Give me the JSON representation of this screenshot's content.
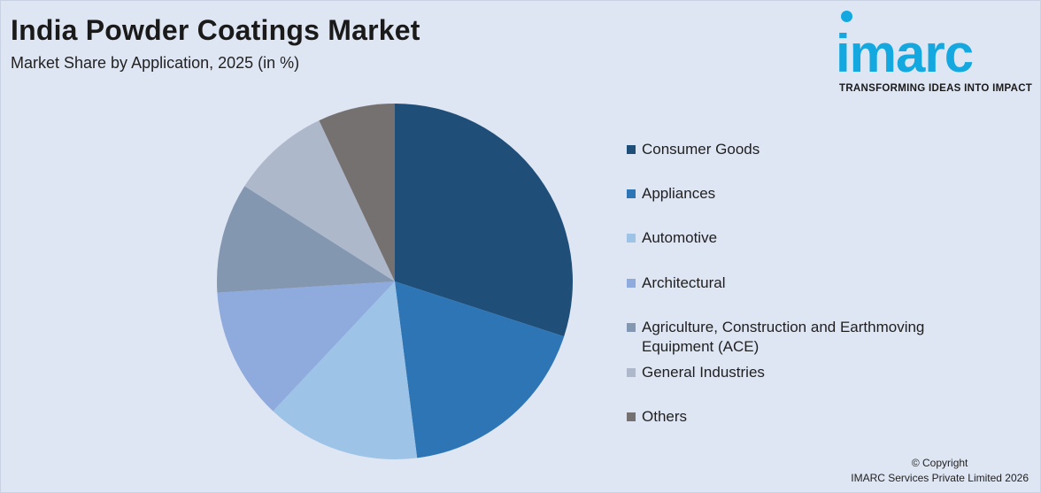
{
  "header": {
    "title": "India Powder Coatings Market",
    "subtitle": "Market Share by Application, 2025 (in %)"
  },
  "logo": {
    "wordmark": "imarc",
    "tagline": "TRANSFORMING IDEAS INTO IMPACT",
    "color": "#13a9e0"
  },
  "footer": {
    "copyright": "© Copyright",
    "company": "IMARC Services Private Limited 2026"
  },
  "chart_data": {
    "type": "pie",
    "title": "India Powder Coatings Market",
    "subtitle": "Market Share by Application, 2025 (in %)",
    "unit": "%",
    "legend_position": "right",
    "slices": [
      {
        "label": "Consumer Goods",
        "value": 30,
        "color": "#1f4e79"
      },
      {
        "label": "Appliances",
        "value": 18,
        "color": "#2e75b6"
      },
      {
        "label": "Automotive",
        "value": 14,
        "color": "#9dc3e6"
      },
      {
        "label": "Architectural",
        "value": 12,
        "color": "#8faadc"
      },
      {
        "label": "Agriculture, Construction and Earthmoving Equipment (ACE)",
        "value": 10,
        "color": "#8497b0"
      },
      {
        "label": "General Industries",
        "value": 9,
        "color": "#adb9ca"
      },
      {
        "label": "Others",
        "value": 7,
        "color": "#767171"
      }
    ]
  }
}
